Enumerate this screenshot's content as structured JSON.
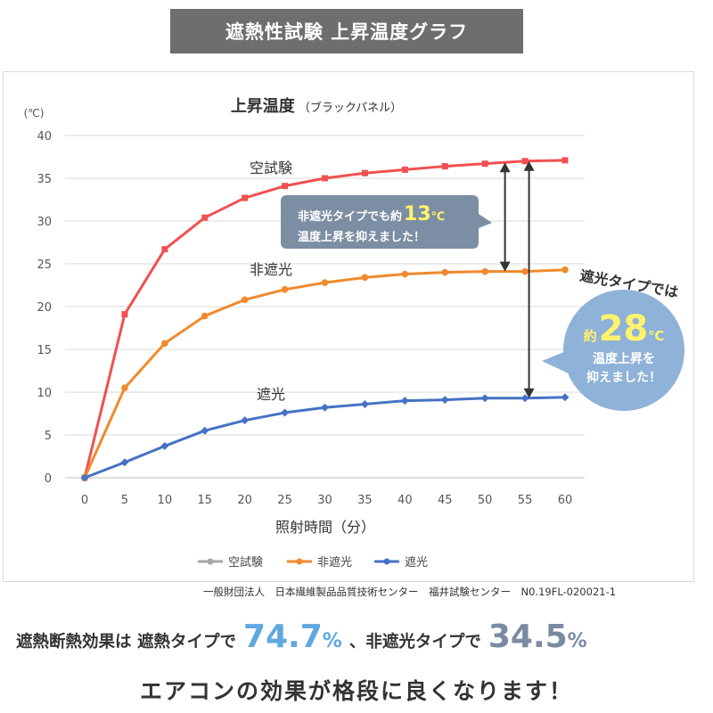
{
  "banner": {
    "title": "遮熱性試験 上昇温度グラフ"
  },
  "chart_data": {
    "type": "line",
    "title": "上昇温度",
    "subtitle": "（ブラックパネル）",
    "ylabel_unit": "(℃)",
    "xlabel": "照射時間（分）",
    "x": [
      0,
      5,
      10,
      15,
      20,
      25,
      30,
      35,
      40,
      45,
      50,
      55,
      60
    ],
    "ylim": [
      0,
      40
    ],
    "yticks": [
      0,
      5,
      10,
      15,
      20,
      25,
      30,
      35,
      40
    ],
    "grid": true,
    "legend_position": "bottom",
    "series": [
      {
        "name": "空試験",
        "color": "#f05050",
        "legend_color": "#a6a6a6",
        "marker": "square",
        "values": [
          0,
          19.1,
          26.7,
          30.4,
          32.7,
          34.1,
          35.0,
          35.6,
          36.0,
          36.4,
          36.7,
          37.0,
          37.1
        ]
      },
      {
        "name": "非遮光",
        "color": "#f08a2c",
        "legend_color": "#f08a2c",
        "marker": "circle",
        "values": [
          0,
          10.5,
          15.7,
          18.9,
          20.8,
          22.0,
          22.8,
          23.4,
          23.8,
          24.0,
          24.1,
          24.1,
          24.3
        ]
      },
      {
        "name": "遮光",
        "color": "#4472c4",
        "legend_color": "#4472c4",
        "marker": "diamond",
        "values": [
          0,
          1.8,
          3.7,
          5.5,
          6.7,
          7.6,
          8.2,
          8.6,
          9.0,
          9.1,
          9.3,
          9.3,
          9.4
        ]
      }
    ],
    "annotations": {
      "label_blank": "空試験",
      "label_nonshade": "非遮光",
      "label_shade": "遮光",
      "callout1_line1_prefix": "非遮光タイプでも約",
      "callout1_value": "13",
      "callout1_unit": "℃",
      "callout1_line2": "温度上昇を抑えました！",
      "callout2_top": "遮光タイプでは",
      "callout2_prefix": "約",
      "callout2_value": "28",
      "callout2_unit": "℃",
      "callout2_line1": "温度上昇を",
      "callout2_line2": "抑えました！"
    }
  },
  "source": "一般財団法人　日本繊維製品品質技術センター　福井試験センター　N0.19FL-020021-1",
  "summary": {
    "prefix": "遮熱断熱効果は 遮熱タイプで",
    "value_a": "74.7",
    "unit_a": "%",
    "middle": "、非遮光タイプで",
    "value_b": "34.5",
    "unit_b": "%",
    "line2": "エアコンの効果が格段に良くなります！"
  },
  "colors": {
    "callout1_bg": "#7c8ea3",
    "callout1_value": "#fff36b",
    "callout2_bg": "#8fb2d8",
    "callout2_value": "#fff36b",
    "arrow": "#333333"
  }
}
